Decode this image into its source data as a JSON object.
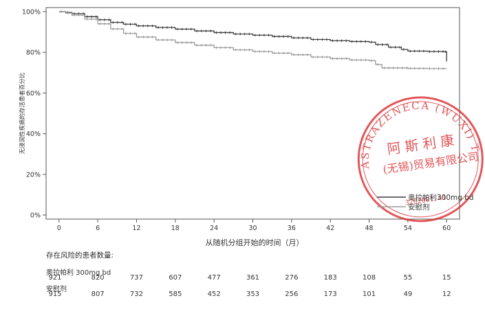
{
  "chart_data": {
    "type": "line",
    "ylabel": "无浸润性疾病的存活患者百分比",
    "xlabel": "从随机分组开始的时间（月）",
    "x_ticks": [
      0,
      6,
      12,
      18,
      24,
      30,
      36,
      42,
      48,
      54,
      60
    ],
    "y_ticks": [
      0,
      20,
      40,
      60,
      80,
      100
    ],
    "y_tick_labels": [
      "0%",
      "20%",
      "40%",
      "60%",
      "80%",
      "100%"
    ],
    "xlim": [
      -2,
      62
    ],
    "ylim": [
      -2,
      102
    ],
    "legend_position": "bottom-right",
    "series": [
      {
        "name": "奥拉帕利300mg bd",
        "color": "#3a3a3a",
        "x": [
          0,
          1,
          2,
          4,
          6,
          8,
          10,
          12,
          15,
          18,
          21,
          24,
          27,
          30,
          33,
          36,
          39,
          42,
          45,
          48,
          49,
          51,
          53,
          54,
          57,
          59.5,
          60
        ],
        "y": [
          100,
          99.6,
          99,
          97.5,
          96,
          94.7,
          93.8,
          93,
          92.2,
          91.4,
          90.5,
          89.7,
          89,
          88.4,
          87.8,
          87.1,
          86.3,
          85.7,
          85.3,
          85,
          83.8,
          82.5,
          81.4,
          80.6,
          80.4,
          80.3,
          75.5
        ]
      },
      {
        "name": "安慰剂",
        "color": "#9a9a9a",
        "x": [
          0,
          1,
          2,
          4,
          6,
          8,
          10,
          12,
          15,
          18,
          21,
          24,
          27,
          30,
          33,
          36,
          39,
          42,
          45,
          48,
          49,
          50,
          54,
          57,
          60
        ],
        "y": [
          100,
          99.3,
          98.3,
          96.3,
          94,
          91.5,
          89.3,
          87.5,
          86.1,
          84.8,
          83.5,
          82.3,
          81.2,
          80.4,
          79.6,
          78.8,
          77.7,
          76.9,
          76.2,
          75.9,
          74,
          72.3,
          72.1,
          72,
          72
        ]
      }
    ],
    "risk_table": {
      "title": "存在风险的患者数量:",
      "groups": [
        {
          "label": "奥拉帕利 300mg bd",
          "counts": [
            "921",
            "820",
            "737",
            "607",
            "477",
            "361",
            "276",
            "183",
            "108",
            "55",
            "15"
          ]
        },
        {
          "label": "安慰剂",
          "counts": [
            "915",
            "807",
            "732",
            "585",
            "452",
            "353",
            "256",
            "173",
            "101",
            "49",
            "12"
          ]
        }
      ]
    }
  },
  "stamp": {
    "outer_text": "ASTRAZENECA (WUXI) TRAD",
    "line1": "阿斯利康",
    "line2": "(无锡)贸易有限公司",
    "serial": "3202001 41",
    "color": "#d9282c"
  }
}
